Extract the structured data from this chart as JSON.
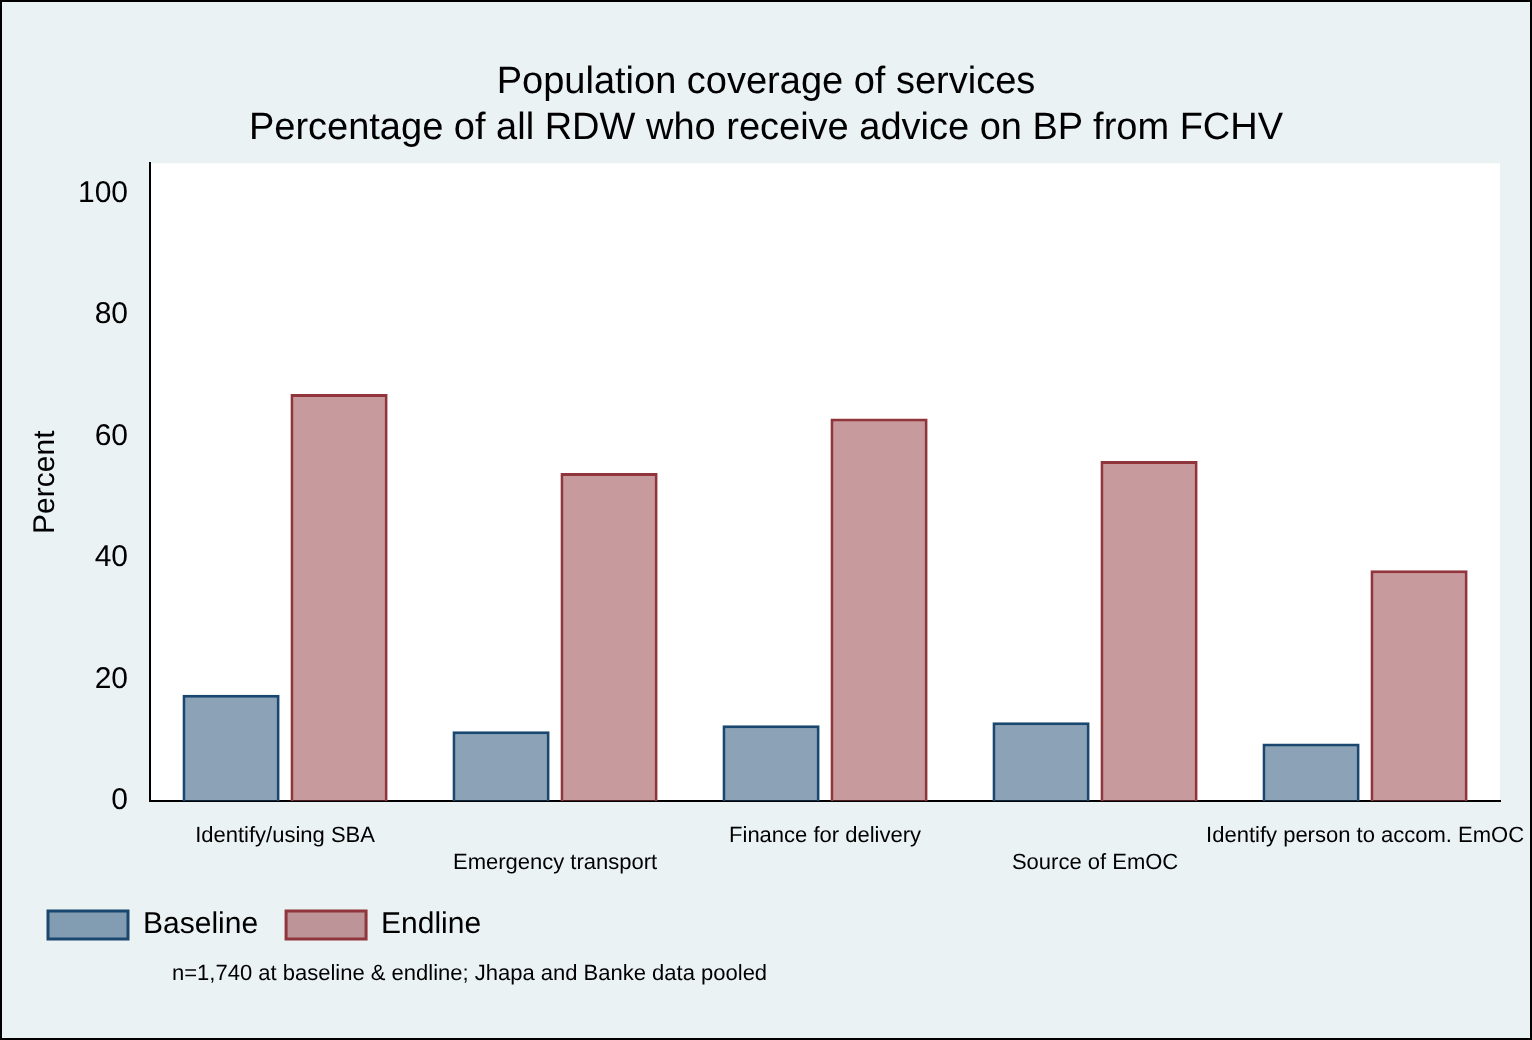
{
  "chart_data": {
    "type": "bar",
    "title": "Population coverage of services",
    "subtitle": "Percentage of all RDW who receive advice on BP from FCHV",
    "ylabel": "Percent",
    "categories": [
      "Identify/using SBA",
      "Emergency transport",
      "Finance for delivery",
      "Source of EmOC",
      "Identify person to accom. EmOC"
    ],
    "series": [
      {
        "name": "Baseline",
        "color": "#1a476f",
        "values": [
          17.5,
          11.5,
          12.5,
          13,
          9.5
        ]
      },
      {
        "name": "Endline",
        "color": "#90353b",
        "values": [
          67,
          54,
          63,
          56,
          38
        ]
      }
    ],
    "ylim": [
      0,
      105
    ],
    "yticks": [
      0,
      20,
      40,
      60,
      80,
      100
    ],
    "grid": false,
    "legend": "bottom",
    "annotations": [
      "n=1,740 at baseline & endline; Jhapa and Banke data pooled"
    ]
  }
}
